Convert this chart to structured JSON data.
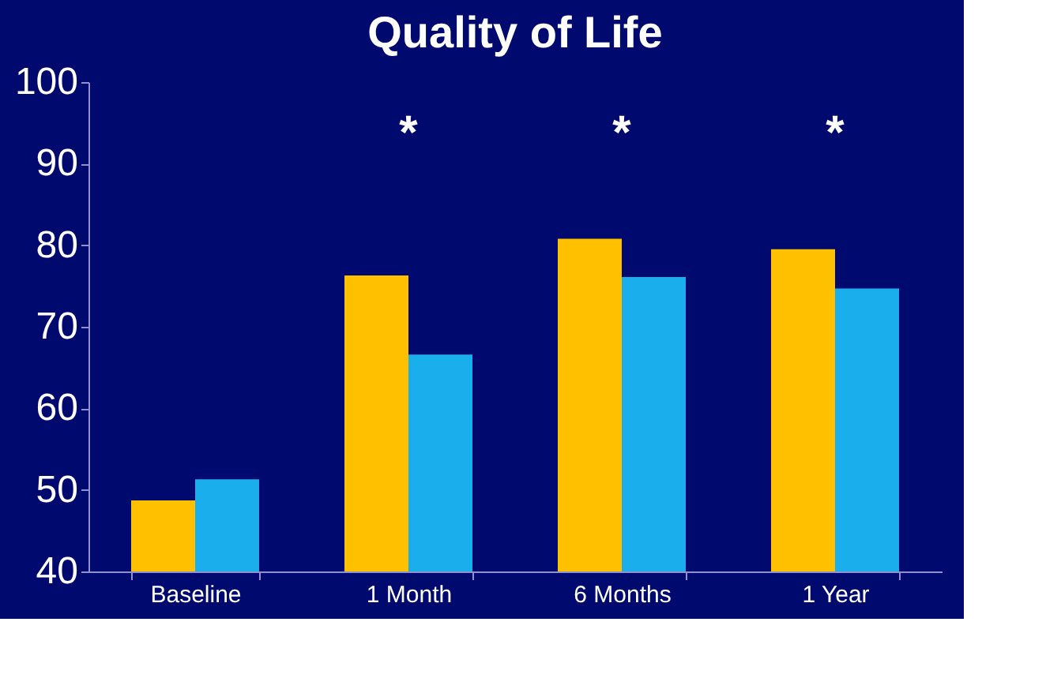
{
  "chart_data": {
    "type": "bar",
    "title": "Quality of Life",
    "categories": [
      "Baseline",
      "1 Month",
      "6 Months",
      "1 Year"
    ],
    "series": [
      {
        "color": "#ffc000",
        "values": [
          48.7,
          76.3,
          80.8,
          79.5
        ]
      },
      {
        "color": "#1aafec",
        "values": [
          51.3,
          66.6,
          76.1,
          74.7
        ]
      }
    ],
    "ylim": [
      40,
      100
    ],
    "yticks": [
      40,
      50,
      60,
      70,
      80,
      90,
      100
    ],
    "grid": false,
    "legend": false,
    "annotations": [
      "*",
      "*",
      "*"
    ]
  }
}
